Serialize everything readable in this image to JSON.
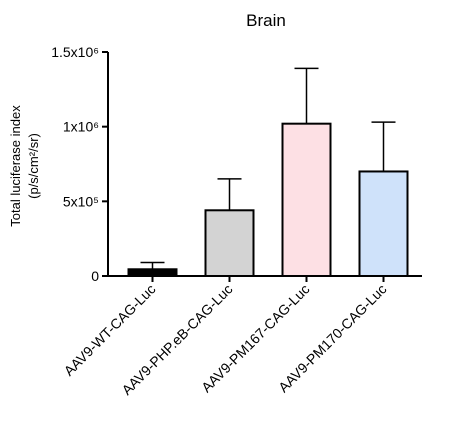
{
  "chart_data": {
    "type": "bar",
    "title": "Brain",
    "ylabel_line1": "Total luciferase index",
    "ylabel_line2": "(p/s/cm²/sr)",
    "ylim": [
      0,
      1500000
    ],
    "yticks": [
      {
        "value": 0,
        "label": "0"
      },
      {
        "value": 500000,
        "label": "5x10⁵"
      },
      {
        "value": 1000000,
        "label": "1x10⁶"
      },
      {
        "value": 1500000,
        "label": "1.5x10⁶"
      }
    ],
    "categories": [
      "AAV9-WT-CAG-Luc",
      "AAV9-PHP.eB-CAG-Luc",
      "AAV9-PM167-CAG-Luc",
      "AAV9-PM170-CAG-Luc"
    ],
    "values": [
      45000,
      440000,
      1020000,
      700000
    ],
    "errors": [
      45000,
      210000,
      370000,
      330000
    ],
    "colors": [
      "#000000",
      "#d3d3d3",
      "#fde0e4",
      "#cfe2fa"
    ],
    "grid": false,
    "legend": "none"
  }
}
